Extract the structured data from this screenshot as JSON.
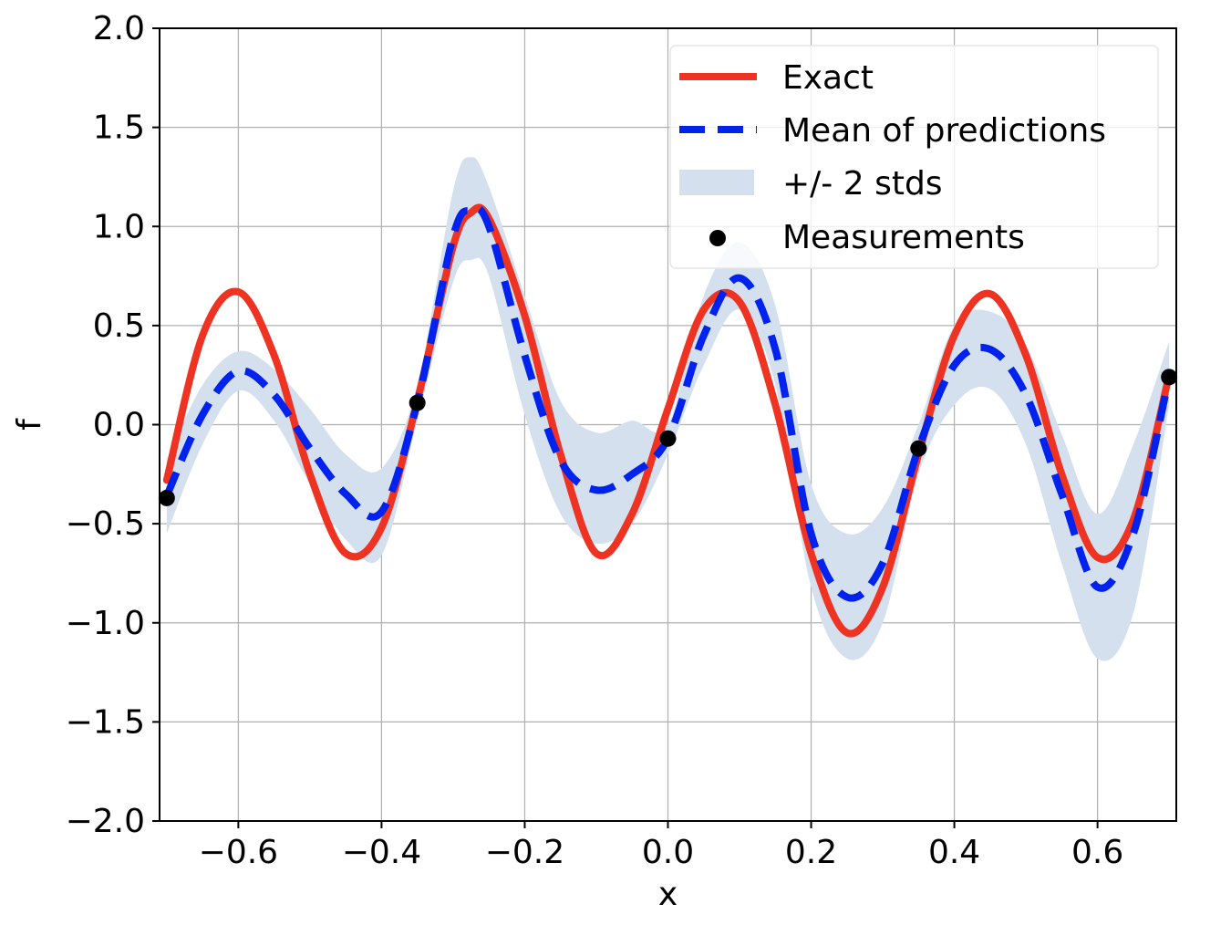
{
  "chart_data": {
    "type": "line",
    "title": "",
    "xlabel": "x",
    "ylabel": "f",
    "xlim": [
      -0.71,
      0.71
    ],
    "ylim": [
      -2.0,
      2.0
    ],
    "grid": true,
    "legend_position": "top-right",
    "x_ticks": [
      -0.6,
      -0.4,
      -0.2,
      0.0,
      0.2,
      0.4,
      0.6
    ],
    "x_tick_labels": [
      "−0.6",
      "−0.4",
      "−0.2",
      "0.0",
      "0.2",
      "0.4",
      "0.6"
    ],
    "y_ticks": [
      2.0,
      1.5,
      1.0,
      0.5,
      0.0,
      -0.5,
      -1.0,
      -1.5,
      -2.0
    ],
    "y_tick_labels": [
      "2.0",
      "1.5",
      "1.0",
      "0.5",
      "0.0",
      "−0.5",
      "−1.0",
      "−1.5",
      "−2.0"
    ],
    "x": [
      -0.7,
      -0.65,
      -0.6,
      -0.55,
      -0.5,
      -0.45,
      -0.4,
      -0.35,
      -0.3,
      -0.275,
      -0.25,
      -0.2,
      -0.15,
      -0.1,
      -0.05,
      0.0,
      0.05,
      0.1,
      0.15,
      0.2,
      0.25,
      0.3,
      0.35,
      0.4,
      0.45,
      0.5,
      0.55,
      0.6,
      0.65,
      0.7
    ],
    "series": [
      {
        "name": "Exact",
        "color": "#ee3322",
        "style": "solid",
        "values": [
          -0.28,
          0.45,
          0.67,
          0.35,
          -0.25,
          -0.65,
          -0.52,
          0.12,
          0.9,
          1.07,
          1.04,
          0.55,
          -0.15,
          -0.65,
          -0.45,
          0.08,
          0.58,
          0.62,
          0.1,
          -0.65,
          -1.05,
          -0.82,
          -0.15,
          0.45,
          0.66,
          0.35,
          -0.25,
          -0.67,
          -0.48,
          0.25
        ]
      },
      {
        "name": "Mean of predictions",
        "color": "#0022ee",
        "style": "dashed",
        "values": [
          -0.36,
          0.05,
          0.27,
          0.15,
          -0.12,
          -0.35,
          -0.44,
          0.11,
          0.95,
          1.08,
          1.0,
          0.35,
          -0.18,
          -0.33,
          -0.25,
          -0.07,
          0.45,
          0.74,
          0.38,
          -0.55,
          -0.87,
          -0.7,
          -0.12,
          0.3,
          0.38,
          0.15,
          -0.35,
          -0.82,
          -0.55,
          0.24
        ]
      }
    ],
    "band": {
      "name": "+/- 2 stds",
      "color": "#d4e0ee",
      "upper": [
        -0.18,
        0.2,
        0.37,
        0.28,
        0.08,
        -0.15,
        -0.22,
        0.2,
        1.18,
        1.35,
        1.2,
        0.65,
        0.12,
        -0.04,
        0.02,
        0.0,
        0.65,
        0.92,
        0.6,
        -0.3,
        -0.55,
        -0.42,
        0.0,
        0.5,
        0.57,
        0.4,
        -0.05,
        -0.45,
        -0.1,
        0.42
      ],
      "lower": [
        -0.55,
        -0.1,
        0.17,
        0.02,
        -0.3,
        -0.58,
        -0.66,
        0.02,
        0.72,
        0.83,
        0.75,
        0.05,
        -0.45,
        -0.6,
        -0.5,
        -0.15,
        0.3,
        0.58,
        0.2,
        -0.82,
        -1.18,
        -1.0,
        -0.25,
        0.1,
        0.18,
        -0.1,
        -0.7,
        -1.18,
        -0.95,
        0.1
      ]
    },
    "measurements": {
      "name": "Measurements",
      "color": "#000000",
      "x": [
        -0.7,
        -0.35,
        0.0,
        0.35,
        0.7
      ],
      "y": [
        -0.37,
        0.11,
        -0.07,
        -0.12,
        0.24
      ]
    },
    "legend": [
      {
        "label": "Exact",
        "kind": "line-solid",
        "color": "#ee3322"
      },
      {
        "label": "Mean of predictions",
        "kind": "line-dashed",
        "color": "#0022ee"
      },
      {
        "label": "+/- 2 stds",
        "kind": "patch",
        "color": "#d4e0ee"
      },
      {
        "label": "Measurements",
        "kind": "dot",
        "color": "#000000"
      }
    ]
  }
}
